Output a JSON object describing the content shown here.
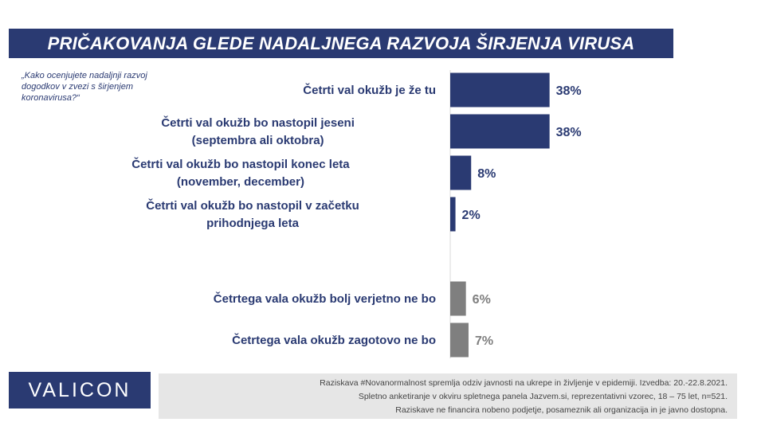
{
  "title": "PRIČAKOVANJA GLEDE NADALJNEGA RAZVOJA ŠIRJENJA VIRUSA",
  "question": "„Kako ocenjujete nadaljnji razvoj dogodkov v zvezi s širjenjem koronavirusa?“",
  "colors": {
    "primary": "#2a3a72",
    "secondary": "#7f7f7f",
    "footer_bg": "#e6e6e6"
  },
  "chart_data": {
    "type": "bar",
    "orientation": "horizontal",
    "categories": [
      [
        "Četrti val okužb je že tu"
      ],
      [
        "Četrti val okužb bo nastopil jeseni",
        "(septembra ali oktobra)"
      ],
      [
        "Četrti val okužb bo nastopil konec leta",
        "(november, december)"
      ],
      [
        "Četrti val okužb bo nastopil v začetku",
        "prihodnjega leta"
      ],
      [
        "Četrtega vala okužb bolj verjetno ne bo"
      ],
      [
        "Četrtega vala okužb zagotovo ne bo"
      ]
    ],
    "values": [
      38,
      38,
      8,
      2,
      6,
      7
    ],
    "value_labels": [
      "38%",
      "38%",
      "8%",
      "2%",
      "6%",
      "7%"
    ],
    "group": [
      "primary",
      "primary",
      "primary",
      "primary",
      "secondary",
      "secondary"
    ],
    "xlim": [
      0,
      100
    ],
    "grid": false
  },
  "logo": "VALICON",
  "footer": {
    "lines": [
      "Raziskava #Novanormalnost spremlja odziv javnosti na ukrepe in življenje v epidemiji. Izvedba: 20.-22.8.2021.",
      "Spletno anketiranje v okviru spletnega panela Jazvem.si, reprezentativni vzorec, 18 – 75 let, n=521.",
      "Raziskave ne financira nobeno podjetje, posameznik ali organizacija in je javno dostopna."
    ]
  }
}
